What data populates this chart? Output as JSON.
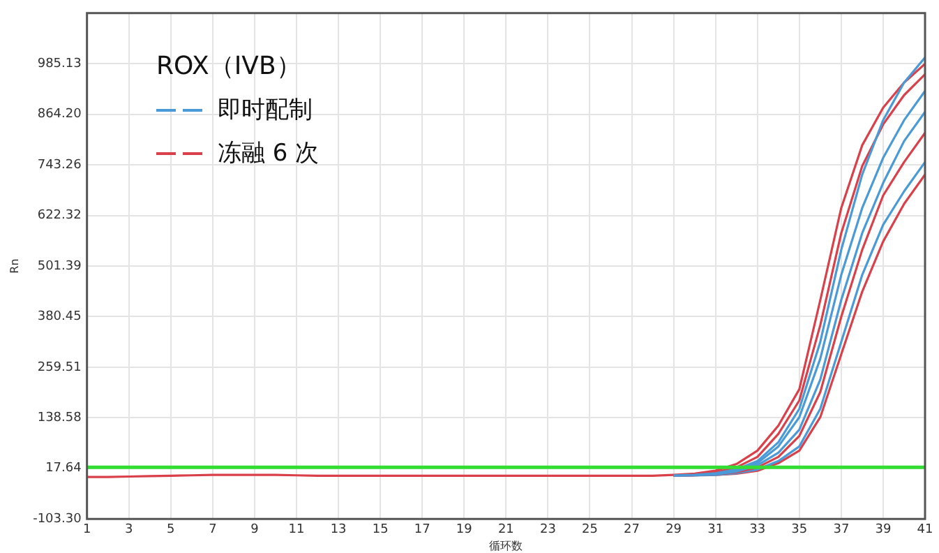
{
  "chart_data": {
    "type": "line",
    "xlabel": "循环数",
    "ylabel": "Rn",
    "legend_title": "ROX（IVB）",
    "legend": "top left",
    "grid": true,
    "marker": "none",
    "line_style": "solid",
    "x": [
      1,
      2,
      3,
      4,
      5,
      6,
      7,
      8,
      9,
      10,
      11,
      12,
      13,
      14,
      15,
      16,
      17,
      18,
      19,
      20,
      21,
      22,
      23,
      24,
      25,
      26,
      27,
      28,
      29,
      30,
      31,
      32,
      33,
      34,
      35,
      36,
      37,
      38,
      39,
      40,
      41
    ],
    "xlim": [
      1,
      41
    ],
    "xticks": [
      1,
      3,
      5,
      7,
      9,
      11,
      13,
      15,
      17,
      19,
      21,
      23,
      25,
      27,
      29,
      31,
      33,
      35,
      37,
      39,
      41
    ],
    "ylim": [
      -103.3,
      1106.07
    ],
    "yticks": [
      {
        "value": -103.3,
        "label": "-103.30"
      },
      17.64,
      138.58,
      259.51,
      380.45,
      501.39,
      622.32,
      743.26,
      {
        "value": 864.2,
        "label": "864.20"
      },
      985.13
    ],
    "ref_lines": [
      {
        "axis": "y",
        "value": 20,
        "color": "#33dd33"
      }
    ],
    "series": [
      {
        "name": "即时配制",
        "color": "#4a9ad8",
        "values": [
          null,
          null,
          null,
          null,
          null,
          null,
          null,
          null,
          null,
          null,
          null,
          null,
          null,
          null,
          null,
          null,
          null,
          null,
          null,
          null,
          null,
          null,
          null,
          null,
          null,
          null,
          null,
          null,
          1,
          2,
          6,
          15,
          35,
          80,
          160,
          320,
          540,
          720,
          850,
          940,
          1000
        ]
      },
      {
        "name": "冻融 6 次",
        "color": "#d9404a",
        "values": [
          -3,
          -3,
          -2,
          -1,
          0,
          1,
          2,
          2,
          2,
          2,
          1,
          0,
          0,
          0,
          0,
          0,
          0,
          0,
          0,
          0,
          0,
          0,
          0,
          0,
          0,
          0,
          0,
          0,
          2,
          5,
          12,
          28,
          60,
          120,
          207,
          420,
          640,
          790,
          880,
          940,
          985
        ]
      },
      {
        "color": "#d9404a",
        "values": [
          null,
          null,
          null,
          null,
          null,
          null,
          null,
          null,
          null,
          null,
          null,
          null,
          null,
          null,
          null,
          null,
          null,
          null,
          null,
          null,
          null,
          null,
          null,
          null,
          null,
          null,
          null,
          null,
          1,
          3,
          8,
          20,
          45,
          100,
          180,
          360,
          580,
          740,
          840,
          910,
          960
        ]
      },
      {
        "color": "#4a9ad8",
        "values": [
          null,
          null,
          null,
          null,
          null,
          null,
          null,
          null,
          null,
          null,
          null,
          null,
          null,
          null,
          null,
          null,
          null,
          null,
          null,
          null,
          null,
          null,
          null,
          null,
          null,
          null,
          null,
          null,
          1,
          2,
          5,
          12,
          30,
          70,
          140,
          280,
          480,
          640,
          760,
          850,
          920
        ]
      },
      {
        "color": "#4a9ad8",
        "values": [
          null,
          null,
          null,
          null,
          null,
          null,
          null,
          null,
          null,
          null,
          null,
          null,
          null,
          null,
          null,
          null,
          null,
          null,
          null,
          null,
          null,
          null,
          null,
          null,
          null,
          null,
          null,
          null,
          0,
          1,
          3,
          10,
          25,
          55,
          110,
          230,
          420,
          580,
          700,
          800,
          870
        ]
      },
      {
        "color": "#d9404a",
        "values": [
          null,
          null,
          null,
          null,
          null,
          null,
          null,
          null,
          null,
          null,
          null,
          null,
          null,
          null,
          null,
          null,
          null,
          null,
          null,
          null,
          null,
          null,
          null,
          null,
          null,
          null,
          null,
          null,
          0,
          1,
          3,
          8,
          20,
          45,
          95,
          200,
          380,
          540,
          670,
          750,
          820
        ]
      },
      {
        "color": "#4a9ad8",
        "values": [
          null,
          null,
          null,
          null,
          null,
          null,
          null,
          null,
          null,
          null,
          null,
          null,
          null,
          null,
          null,
          null,
          null,
          null,
          null,
          null,
          null,
          null,
          null,
          null,
          null,
          null,
          null,
          null,
          0,
          1,
          2,
          6,
          15,
          35,
          70,
          160,
          320,
          480,
          600,
          680,
          750
        ]
      },
      {
        "color": "#d9404a",
        "values": [
          null,
          null,
          null,
          null,
          null,
          null,
          null,
          null,
          null,
          null,
          null,
          null,
          null,
          null,
          null,
          null,
          null,
          null,
          null,
          null,
          null,
          null,
          null,
          null,
          null,
          null,
          null,
          null,
          0,
          1,
          2,
          5,
          12,
          30,
          60,
          140,
          290,
          440,
          560,
          650,
          720
        ]
      }
    ]
  }
}
